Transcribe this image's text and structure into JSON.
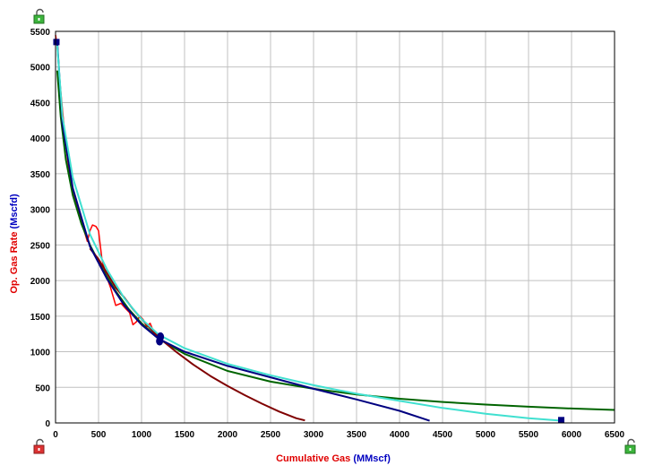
{
  "colors": {
    "background": "#ffffff",
    "grid": "#c0c0c0",
    "frame": "#000000",
    "x_title_color": "#e00000",
    "x_unit_color": "#0000c0",
    "y_title_color": "#e00000",
    "y_unit_color": "#0000c0",
    "lock_green": "#3cb43c",
    "lock_red": "#dc3232"
  },
  "icons": {
    "top_left": "unlocked-padlock-icon",
    "bottom_left": "unlocked-padlock-icon",
    "bottom_right": "unlocked-padlock-icon"
  },
  "chart_data": {
    "type": "line",
    "xlabel": "Cumulative Gas",
    "xlabel_unit": "(MMscf)",
    "ylabel": "Op. Gas Rate",
    "ylabel_unit": "(Mscfd)",
    "xlim": [
      0,
      6500
    ],
    "ylim": [
      0,
      5500
    ],
    "xticks": [
      0,
      500,
      1000,
      1500,
      2000,
      2500,
      3000,
      3500,
      4000,
      4500,
      5000,
      5500,
      6000,
      6500
    ],
    "yticks": [
      0,
      500,
      1000,
      1500,
      2000,
      2500,
      3000,
      3500,
      4000,
      4500,
      5000,
      5500
    ],
    "grid": true,
    "series": [
      {
        "color": "#ff0000",
        "width": 1.5,
        "x": [
          0,
          20,
          50,
          80,
          120,
          160,
          200,
          260,
          320,
          370,
          400,
          430,
          470,
          500,
          540,
          580,
          640,
          700,
          760,
          820,
          860,
          900,
          940,
          980,
          1020,
          1060,
          1100,
          1140,
          1180,
          1220
        ],
        "y": [
          5450,
          5300,
          4800,
          4400,
          3900,
          3500,
          3250,
          3000,
          2750,
          2550,
          2700,
          2780,
          2760,
          2700,
          2300,
          2100,
          1900,
          1650,
          1680,
          1600,
          1550,
          1380,
          1420,
          1500,
          1450,
          1350,
          1400,
          1280,
          1250,
          1200
        ]
      },
      {
        "color": "#006400",
        "width": 2,
        "x": [
          20,
          60,
          120,
          200,
          300,
          400,
          550,
          700,
          850,
          1000,
          1200,
          1500,
          2000,
          2500,
          3000,
          3500,
          4000,
          4500,
          5000,
          5500,
          6000,
          6500
        ],
        "y": [
          4950,
          4300,
          3700,
          3200,
          2800,
          2500,
          2150,
          1850,
          1600,
          1400,
          1180,
          970,
          730,
          580,
          480,
          400,
          340,
          295,
          258,
          228,
          203,
          183
        ]
      },
      {
        "color": "#800000",
        "width": 2,
        "x": [
          400,
          500,
          600,
          700,
          800,
          900,
          1000,
          1100,
          1200,
          1400,
          1600,
          1800,
          2000,
          2200,
          2400,
          2600,
          2800,
          2900
        ],
        "y": [
          2450,
          2300,
          2100,
          1900,
          1760,
          1600,
          1460,
          1330,
          1200,
          1000,
          820,
          660,
          520,
          390,
          270,
          160,
          65,
          35
        ]
      },
      {
        "color": "#000080",
        "width": 2,
        "x": [
          20,
          80,
          200,
          400,
          600,
          800,
          1000,
          1200,
          1500,
          2000,
          2500,
          3000,
          3500,
          4000,
          4350
        ],
        "y": [
          5350,
          4200,
          3300,
          2480,
          2020,
          1650,
          1380,
          1180,
          1000,
          800,
          640,
          480,
          330,
          170,
          30
        ]
      },
      {
        "color": "#40e0d0",
        "width": 2,
        "x": [
          20,
          80,
          200,
          400,
          600,
          800,
          1000,
          1200,
          1500,
          2000,
          2500,
          3000,
          3500,
          4000,
          4500,
          5000,
          5500,
          5900
        ],
        "y": [
          5300,
          4300,
          3450,
          2650,
          2150,
          1750,
          1460,
          1240,
          1050,
          830,
          670,
          530,
          410,
          310,
          210,
          130,
          65,
          30
        ]
      }
    ],
    "markers": [
      {
        "shape": "square",
        "color": "#000080",
        "x": 10,
        "y": 5350
      },
      {
        "shape": "square",
        "color": "#000080",
        "x": 5880,
        "y": 40
      },
      {
        "shape": "circle",
        "color": "#000080",
        "x": 1220,
        "y": 1210
      },
      {
        "shape": "circle",
        "color": "#000080",
        "x": 1210,
        "y": 1150
      }
    ]
  }
}
